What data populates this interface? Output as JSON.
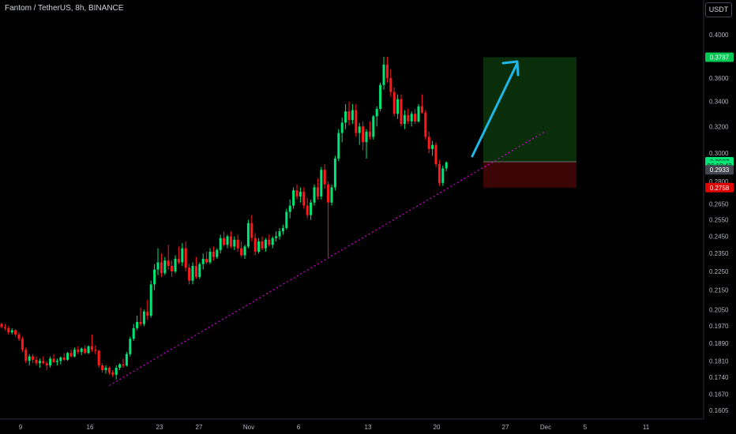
{
  "header": {
    "title": "Fantom / TetherUS, 8h, BINANCE",
    "currency_button": "USDT"
  },
  "colors": {
    "up": "#00e676",
    "down": "#ff1a1a",
    "trendline": "#d400d4",
    "arrow": "#1fb6e8",
    "target_zone": "#0a2e0a",
    "stop_zone": "#3d0505",
    "background": "#000000"
  },
  "chart_data": {
    "type": "candlestick",
    "title": "Fantom / TetherUS, 8h, BINANCE",
    "ylim": [
      0.16,
      0.415
    ],
    "y_ticks": [
      "0.4000",
      "0.3600",
      "0.3400",
      "0.3200",
      "0.3000",
      "0.2800",
      "0.2650",
      "0.2550",
      "0.2450",
      "0.2350",
      "0.2250",
      "0.2150",
      "0.2050",
      "0.1970",
      "0.1890",
      "0.1810",
      "0.1740",
      "0.1670",
      "0.1605"
    ],
    "x_ticks": [
      "9",
      "16",
      "23",
      "27",
      "Nov",
      "6",
      "13",
      "20",
      "27",
      "Dec",
      "5",
      "11"
    ],
    "price_badges": [
      {
        "label": "0.3787",
        "price": 0.3787,
        "color": "#00c853"
      },
      {
        "label": "0.2937",
        "price": 0.2937,
        "color": "#00e676"
      },
      {
        "label": "06:10:43",
        "price": 0.291,
        "color": "#00e676"
      },
      {
        "label": "0.2933",
        "price": 0.288,
        "color": "#434651"
      },
      {
        "label": "0.2758",
        "price": 0.2758,
        "color": "#e00000"
      }
    ],
    "position": {
      "entry": 0.2937,
      "target": 0.3787,
      "stop": 0.2758
    },
    "candles": [
      [
        0.198,
        0.1985,
        0.196,
        0.1965
      ],
      [
        0.1965,
        0.198,
        0.195,
        0.196
      ],
      [
        0.196,
        0.197,
        0.193,
        0.194
      ],
      [
        0.194,
        0.196,
        0.193,
        0.195
      ],
      [
        0.195,
        0.1955,
        0.192,
        0.193
      ],
      [
        0.193,
        0.194,
        0.19,
        0.191
      ],
      [
        0.191,
        0.192,
        0.185,
        0.186
      ],
      [
        0.186,
        0.187,
        0.18,
        0.181
      ],
      [
        0.181,
        0.184,
        0.179,
        0.183
      ],
      [
        0.183,
        0.184,
        0.18,
        0.1815
      ],
      [
        0.1815,
        0.183,
        0.179,
        0.18
      ],
      [
        0.18,
        0.182,
        0.178,
        0.181
      ],
      [
        0.181,
        0.183,
        0.1795,
        0.18
      ],
      [
        0.18,
        0.181,
        0.177,
        0.179
      ],
      [
        0.179,
        0.183,
        0.178,
        0.182
      ],
      [
        0.182,
        0.184,
        0.18,
        0.1805
      ],
      [
        0.1805,
        0.182,
        0.179,
        0.181
      ],
      [
        0.181,
        0.183,
        0.1795,
        0.1825
      ],
      [
        0.1825,
        0.1845,
        0.181,
        0.1815
      ],
      [
        0.1815,
        0.185,
        0.181,
        0.1845
      ],
      [
        0.1845,
        0.186,
        0.1825,
        0.183
      ],
      [
        0.183,
        0.187,
        0.1825,
        0.186
      ],
      [
        0.186,
        0.1875,
        0.184,
        0.185
      ],
      [
        0.185,
        0.187,
        0.1835,
        0.1865
      ],
      [
        0.1865,
        0.188,
        0.184,
        0.1845
      ],
      [
        0.1845,
        0.188,
        0.184,
        0.1875
      ],
      [
        0.1875,
        0.193,
        0.185,
        0.186
      ],
      [
        0.186,
        0.188,
        0.184,
        0.1855
      ],
      [
        0.1855,
        0.186,
        0.178,
        0.179
      ],
      [
        0.179,
        0.18,
        0.176,
        0.177
      ],
      [
        0.177,
        0.179,
        0.1755,
        0.178
      ],
      [
        0.178,
        0.1785,
        0.175,
        0.176
      ],
      [
        0.176,
        0.177,
        0.174,
        0.175
      ],
      [
        0.175,
        0.179,
        0.173,
        0.178
      ],
      [
        0.178,
        0.18,
        0.177,
        0.1795
      ],
      [
        0.1795,
        0.182,
        0.178,
        0.179
      ],
      [
        0.179,
        0.185,
        0.1785,
        0.184
      ],
      [
        0.184,
        0.192,
        0.183,
        0.191
      ],
      [
        0.191,
        0.198,
        0.19,
        0.196
      ],
      [
        0.196,
        0.202,
        0.195,
        0.199
      ],
      [
        0.199,
        0.206,
        0.197,
        0.198
      ],
      [
        0.198,
        0.205,
        0.197,
        0.204
      ],
      [
        0.204,
        0.21,
        0.2,
        0.202
      ],
      [
        0.202,
        0.22,
        0.201,
        0.218
      ],
      [
        0.218,
        0.229,
        0.215,
        0.226
      ],
      [
        0.226,
        0.238,
        0.223,
        0.23
      ],
      [
        0.23,
        0.235,
        0.222,
        0.224
      ],
      [
        0.224,
        0.233,
        0.223,
        0.231
      ],
      [
        0.231,
        0.24,
        0.226,
        0.228
      ],
      [
        0.228,
        0.231,
        0.222,
        0.225
      ],
      [
        0.225,
        0.234,
        0.224,
        0.232
      ],
      [
        0.232,
        0.239,
        0.229,
        0.23
      ],
      [
        0.23,
        0.241,
        0.228,
        0.238
      ],
      [
        0.238,
        0.242,
        0.225,
        0.227
      ],
      [
        0.227,
        0.229,
        0.218,
        0.22
      ],
      [
        0.22,
        0.23,
        0.218,
        0.228
      ],
      [
        0.228,
        0.233,
        0.221,
        0.222
      ],
      [
        0.222,
        0.23,
        0.221,
        0.229
      ],
      [
        0.229,
        0.235,
        0.226,
        0.232
      ],
      [
        0.232,
        0.236,
        0.229,
        0.23
      ],
      [
        0.23,
        0.238,
        0.229,
        0.236
      ],
      [
        0.236,
        0.239,
        0.231,
        0.233
      ],
      [
        0.233,
        0.238,
        0.232,
        0.237
      ],
      [
        0.237,
        0.246,
        0.235,
        0.244
      ],
      [
        0.244,
        0.248,
        0.239,
        0.24
      ],
      [
        0.24,
        0.246,
        0.238,
        0.245
      ],
      [
        0.245,
        0.248,
        0.238,
        0.239
      ],
      [
        0.239,
        0.245,
        0.237,
        0.243
      ],
      [
        0.243,
        0.246,
        0.236,
        0.238
      ],
      [
        0.238,
        0.242,
        0.233,
        0.234
      ],
      [
        0.234,
        0.24,
        0.232,
        0.239
      ],
      [
        0.239,
        0.255,
        0.238,
        0.253
      ],
      [
        0.253,
        0.258,
        0.242,
        0.244
      ],
      [
        0.244,
        0.247,
        0.234,
        0.236
      ],
      [
        0.236,
        0.244,
        0.235,
        0.242
      ],
      [
        0.242,
        0.245,
        0.237,
        0.238
      ],
      [
        0.238,
        0.244,
        0.236,
        0.243
      ],
      [
        0.243,
        0.246,
        0.239,
        0.24
      ],
      [
        0.24,
        0.245,
        0.238,
        0.244
      ],
      [
        0.244,
        0.248,
        0.242,
        0.245
      ],
      [
        0.245,
        0.25,
        0.243,
        0.248
      ],
      [
        0.248,
        0.252,
        0.246,
        0.25
      ],
      [
        0.25,
        0.262,
        0.249,
        0.26
      ],
      [
        0.26,
        0.268,
        0.256,
        0.264
      ],
      [
        0.264,
        0.276,
        0.262,
        0.274
      ],
      [
        0.274,
        0.278,
        0.268,
        0.27
      ],
      [
        0.27,
        0.276,
        0.266,
        0.273
      ],
      [
        0.273,
        0.276,
        0.262,
        0.264
      ],
      [
        0.264,
        0.269,
        0.256,
        0.258
      ],
      [
        0.258,
        0.268,
        0.255,
        0.266
      ],
      [
        0.266,
        0.278,
        0.264,
        0.276
      ],
      [
        0.276,
        0.282,
        0.268,
        0.27
      ],
      [
        0.27,
        0.29,
        0.268,
        0.288
      ],
      [
        0.288,
        0.292,
        0.275,
        0.278
      ],
      [
        0.278,
        0.28,
        0.233,
        0.266
      ],
      [
        0.266,
        0.278,
        0.264,
        0.276
      ],
      [
        0.276,
        0.298,
        0.274,
        0.296
      ],
      [
        0.296,
        0.318,
        0.294,
        0.315
      ],
      [
        0.315,
        0.327,
        0.308,
        0.323
      ],
      [
        0.323,
        0.338,
        0.318,
        0.332
      ],
      [
        0.332,
        0.34,
        0.321,
        0.325
      ],
      [
        0.325,
        0.338,
        0.322,
        0.333
      ],
      [
        0.333,
        0.338,
        0.312,
        0.315
      ],
      [
        0.315,
        0.323,
        0.306,
        0.32
      ],
      [
        0.32,
        0.324,
        0.302,
        0.308
      ],
      [
        0.308,
        0.318,
        0.296,
        0.316
      ],
      [
        0.316,
        0.324,
        0.31,
        0.312
      ],
      [
        0.312,
        0.329,
        0.31,
        0.328
      ],
      [
        0.328,
        0.336,
        0.32,
        0.334
      ],
      [
        0.334,
        0.356,
        0.332,
        0.354
      ],
      [
        0.354,
        0.379,
        0.35,
        0.372
      ],
      [
        0.372,
        0.379,
        0.356,
        0.36
      ],
      [
        0.36,
        0.368,
        0.344,
        0.348
      ],
      [
        0.348,
        0.352,
        0.328,
        0.33
      ],
      [
        0.33,
        0.346,
        0.326,
        0.342
      ],
      [
        0.342,
        0.346,
        0.32,
        0.322
      ],
      [
        0.322,
        0.333,
        0.318,
        0.329
      ],
      [
        0.329,
        0.334,
        0.322,
        0.324
      ],
      [
        0.324,
        0.332,
        0.32,
        0.33
      ],
      [
        0.33,
        0.334,
        0.322,
        0.324
      ],
      [
        0.324,
        0.338,
        0.323,
        0.336
      ],
      [
        0.336,
        0.346,
        0.33,
        0.331
      ],
      [
        0.331,
        0.333,
        0.31,
        0.312
      ],
      [
        0.312,
        0.316,
        0.3,
        0.303
      ],
      [
        0.303,
        0.309,
        0.298,
        0.306
      ],
      [
        0.306,
        0.308,
        0.29,
        0.292
      ],
      [
        0.292,
        0.295,
        0.277,
        0.279
      ],
      [
        0.279,
        0.291,
        0.277,
        0.289
      ],
      [
        0.289,
        0.294,
        0.287,
        0.2933
      ]
    ]
  }
}
